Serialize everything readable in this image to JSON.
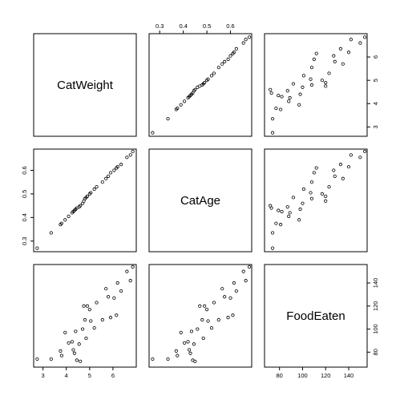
{
  "chart_data": {
    "type": "scatter",
    "variables": [
      "CatWeight",
      "CatAge",
      "FoodEaten"
    ],
    "ranges": {
      "CatWeight": [
        2.6,
        7.0
      ],
      "CatAge": [
        0.255,
        0.69
      ],
      "FoodEaten": [
        67,
        156
      ]
    },
    "ticks": {
      "CatWeight": {
        "values": [
          3,
          4,
          5,
          6
        ],
        "labels": [
          "3",
          "4",
          "5",
          "6"
        ]
      },
      "CatAge": {
        "values": [
          0.3,
          0.4,
          0.5,
          0.6
        ],
        "labels": [
          "0.3",
          "0.4",
          "0.5",
          "0.6"
        ]
      },
      "FoodEaten": {
        "values": [
          80,
          100,
          120,
          140
        ],
        "labels": [
          "80",
          "100",
          "120",
          "140"
        ]
      }
    },
    "axis_placement": {
      "CatWeight": {
        "x": "bottom",
        "y": "right"
      },
      "CatAge": {
        "x": "top",
        "y": "left"
      },
      "FoodEaten": {
        "x": "bottom",
        "y": "right"
      }
    },
    "grid": false,
    "points": [
      {
        "CatWeight": 2.75,
        "CatAge": 0.27,
        "FoodEaten": 74
      },
      {
        "CatWeight": 3.35,
        "CatAge": 0.335,
        "FoodEaten": 74
      },
      {
        "CatWeight": 3.75,
        "CatAge": 0.37,
        "FoodEaten": 81
      },
      {
        "CatWeight": 3.8,
        "CatAge": 0.375,
        "FoodEaten": 77
      },
      {
        "CatWeight": 3.95,
        "CatAge": 0.39,
        "FoodEaten": 97
      },
      {
        "CatWeight": 4.1,
        "CatAge": 0.405,
        "FoodEaten": 88
      },
      {
        "CatWeight": 4.25,
        "CatAge": 0.42,
        "FoodEaten": 89
      },
      {
        "CatWeight": 4.3,
        "CatAge": 0.425,
        "FoodEaten": 82
      },
      {
        "CatWeight": 4.35,
        "CatAge": 0.43,
        "FoodEaten": 79
      },
      {
        "CatWeight": 4.4,
        "CatAge": 0.435,
        "FoodEaten": 98
      },
      {
        "CatWeight": 4.45,
        "CatAge": 0.44,
        "FoodEaten": 73
      },
      {
        "CatWeight": 4.55,
        "CatAge": 0.445,
        "FoodEaten": 87
      },
      {
        "CatWeight": 4.6,
        "CatAge": 0.45,
        "FoodEaten": 72
      },
      {
        "CatWeight": 4.7,
        "CatAge": 0.46,
        "FoodEaten": 100
      },
      {
        "CatWeight": 4.75,
        "CatAge": 0.47,
        "FoodEaten": 120
      },
      {
        "CatWeight": 4.8,
        "CatAge": 0.48,
        "FoodEaten": 108
      },
      {
        "CatWeight": 4.85,
        "CatAge": 0.485,
        "FoodEaten": 92
      },
      {
        "CatWeight": 4.9,
        "CatAge": 0.49,
        "FoodEaten": 120
      },
      {
        "CatWeight": 5.0,
        "CatAge": 0.5,
        "FoodEaten": 117
      },
      {
        "CatWeight": 5.05,
        "CatAge": 0.505,
        "FoodEaten": 107
      },
      {
        "CatWeight": 5.2,
        "CatAge": 0.52,
        "FoodEaten": 101
      },
      {
        "CatWeight": 5.3,
        "CatAge": 0.53,
        "FoodEaten": 123
      },
      {
        "CatWeight": 5.55,
        "CatAge": 0.55,
        "FoodEaten": 108
      },
      {
        "CatWeight": 5.7,
        "CatAge": 0.565,
        "FoodEaten": 135
      },
      {
        "CatWeight": 5.8,
        "CatAge": 0.575,
        "FoodEaten": 128
      },
      {
        "CatWeight": 5.9,
        "CatAge": 0.59,
        "FoodEaten": 110
      },
      {
        "CatWeight": 6.05,
        "CatAge": 0.6,
        "FoodEaten": 127
      },
      {
        "CatWeight": 6.15,
        "CatAge": 0.61,
        "FoodEaten": 112
      },
      {
        "CatWeight": 6.2,
        "CatAge": 0.615,
        "FoodEaten": 140
      },
      {
        "CatWeight": 6.35,
        "CatAge": 0.625,
        "FoodEaten": 133
      },
      {
        "CatWeight": 6.6,
        "CatAge": 0.655,
        "FoodEaten": 150
      },
      {
        "CatWeight": 6.75,
        "CatAge": 0.665,
        "FoodEaten": 142
      },
      {
        "CatWeight": 6.85,
        "CatAge": 0.68,
        "FoodEaten": 154
      }
    ]
  }
}
